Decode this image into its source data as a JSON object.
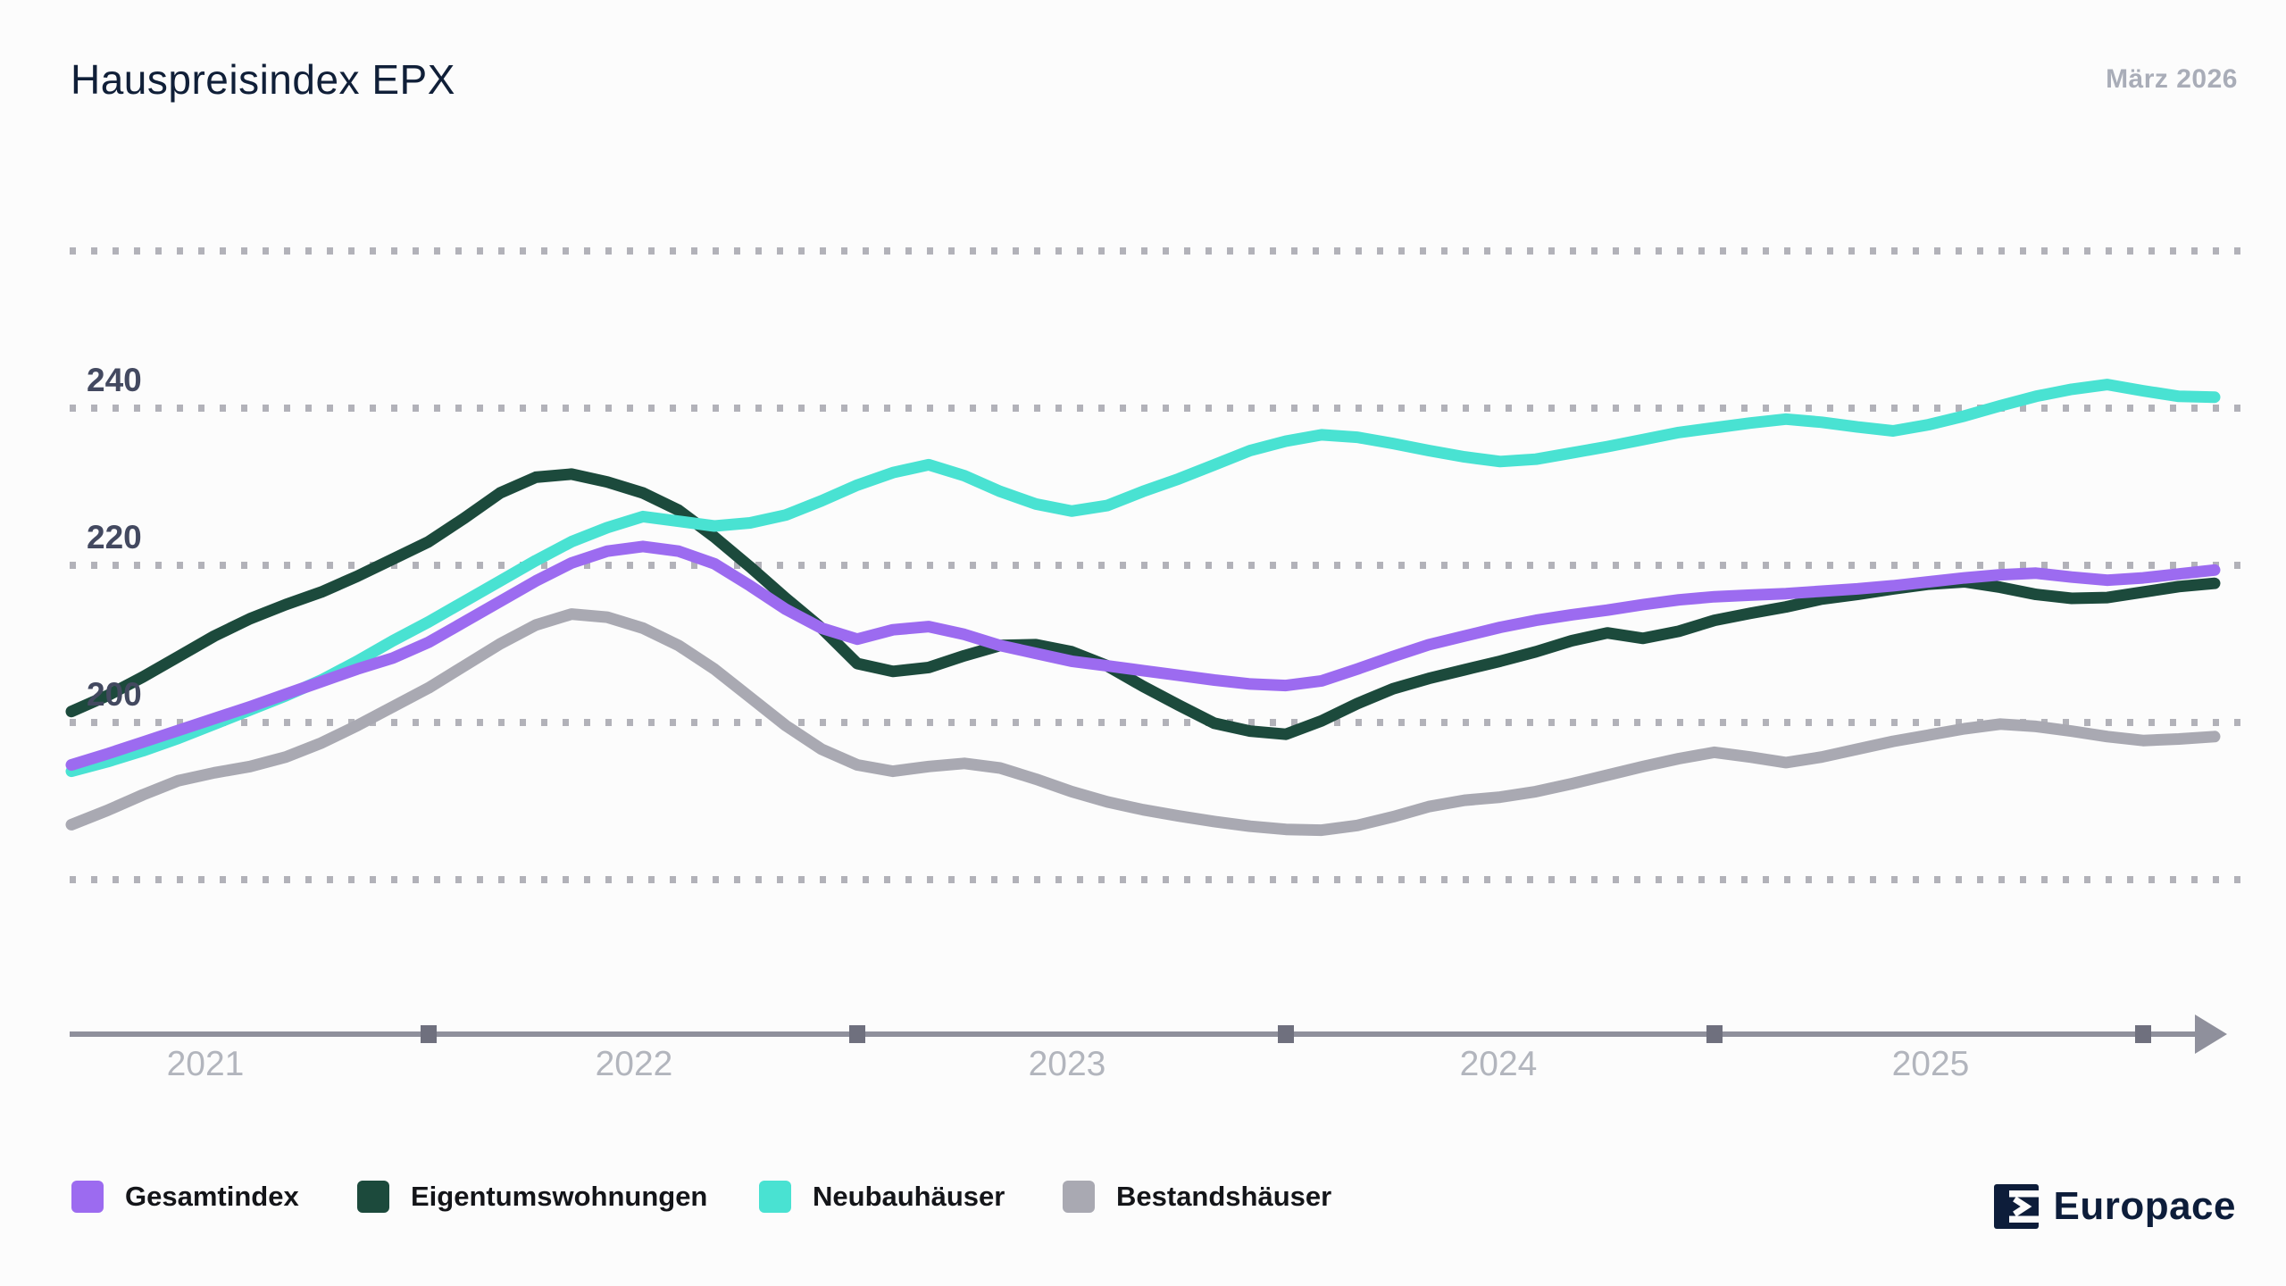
{
  "header": {
    "title": "Hauspreisindex EPX",
    "date_label": "März 2026"
  },
  "y_axis": {
    "tick_labels": [
      "240",
      "220",
      "200"
    ],
    "tick_values": [
      240,
      220,
      200
    ],
    "gridline_values": [
      260,
      240,
      220,
      200,
      180
    ]
  },
  "x_axis": {
    "year_labels": [
      "2021",
      "2022",
      "2023",
      "2024",
      "2025"
    ]
  },
  "legend": [
    {
      "label": "Gesamtindex",
      "color": "#9c6bf0"
    },
    {
      "label": "Eigentumswohnungen",
      "color": "#1c4a3c"
    },
    {
      "label": "Neubauhäuser",
      "color": "#49e2d2"
    },
    {
      "label": "Bestandshäuser",
      "color": "#a9a9b2"
    }
  ],
  "branding": {
    "logo_text": "Europace"
  },
  "chart_data": {
    "type": "line",
    "title": "Hauspreisindex EPX",
    "subtitle": "März 2026",
    "x_start_month": "2021-03",
    "x_end_month": "2026-03",
    "interval": "monthly",
    "ylim": [
      172,
      264
    ],
    "grid": "dotted-horizontal",
    "legend_position": "bottom-left",
    "series": [
      {
        "name": "Gesamtindex",
        "color": "#9c6bf0",
        "values": [
          194.6,
          196.0,
          197.5,
          199.0,
          200.5,
          202.0,
          203.6,
          205.2,
          206.8,
          208.2,
          210.2,
          212.8,
          215.4,
          218.0,
          220.3,
          221.8,
          222.4,
          221.8,
          220.2,
          217.4,
          214.4,
          212.0,
          210.6,
          211.8,
          212.2,
          211.2,
          209.8,
          208.8,
          207.8,
          207.2,
          206.6,
          206.0,
          205.4,
          204.9,
          204.7,
          205.3,
          206.8,
          208.4,
          209.9,
          211.0,
          212.1,
          213.0,
          213.7,
          214.3,
          215.0,
          215.6,
          216.0,
          216.2,
          216.4,
          216.7,
          217.0,
          217.4,
          217.9,
          218.4,
          218.8,
          219.0,
          218.5,
          218.1,
          218.4,
          218.9,
          219.4
        ]
      },
      {
        "name": "Eigentumswohnungen",
        "color": "#1c4a3c",
        "values": [
          201.4,
          203.4,
          205.8,
          208.4,
          211.0,
          213.2,
          215.0,
          216.6,
          218.6,
          220.8,
          223.0,
          226.0,
          229.2,
          231.2,
          231.6,
          230.6,
          229.2,
          227.0,
          223.6,
          219.8,
          215.8,
          212.0,
          207.5,
          206.5,
          207.0,
          208.5,
          209.8,
          209.9,
          209.0,
          207.2,
          204.6,
          202.2,
          199.9,
          198.9,
          198.5,
          200.2,
          202.4,
          204.3,
          205.6,
          206.7,
          207.8,
          209.0,
          210.4,
          211.4,
          210.7,
          211.6,
          213.0,
          213.9,
          214.7,
          215.7,
          216.3,
          217.0,
          217.6,
          217.9,
          217.2,
          216.3,
          215.8,
          215.9,
          216.6,
          217.3,
          217.7
        ]
      },
      {
        "name": "Neubauhäuser",
        "color": "#49e2d2",
        "values": [
          193.8,
          195.0,
          196.4,
          198.0,
          199.8,
          201.6,
          203.4,
          205.4,
          207.8,
          210.4,
          212.8,
          215.4,
          218.0,
          220.6,
          223.0,
          224.8,
          226.2,
          225.6,
          225.0,
          225.4,
          226.4,
          228.2,
          230.2,
          231.8,
          232.8,
          231.4,
          229.4,
          227.8,
          226.9,
          227.6,
          229.4,
          231.0,
          232.8,
          234.6,
          235.8,
          236.6,
          236.3,
          235.5,
          234.6,
          233.8,
          233.2,
          233.5,
          234.3,
          235.1,
          236.0,
          236.9,
          237.5,
          238.1,
          238.6,
          238.2,
          237.6,
          237.1,
          237.9,
          239.0,
          240.3,
          241.5,
          242.4,
          243.0,
          242.2,
          241.5,
          241.4
        ]
      },
      {
        "name": "Bestandshäuser",
        "color": "#a9a9b2",
        "values": [
          187.0,
          188.8,
          190.8,
          192.6,
          193.6,
          194.4,
          195.6,
          197.4,
          199.6,
          202.0,
          204.4,
          207.2,
          210.0,
          212.4,
          213.8,
          213.4,
          212.0,
          209.8,
          206.8,
          203.2,
          199.6,
          196.6,
          194.6,
          193.8,
          194.4,
          194.8,
          194.2,
          192.8,
          191.2,
          189.9,
          188.9,
          188.1,
          187.4,
          186.8,
          186.4,
          186.3,
          186.9,
          188.0,
          189.3,
          190.1,
          190.5,
          191.2,
          192.2,
          193.3,
          194.4,
          195.4,
          196.2,
          195.6,
          194.9,
          195.6,
          196.6,
          197.6,
          198.4,
          199.2,
          199.8,
          199.5,
          198.9,
          198.2,
          197.7,
          197.9,
          198.2
        ]
      }
    ]
  }
}
